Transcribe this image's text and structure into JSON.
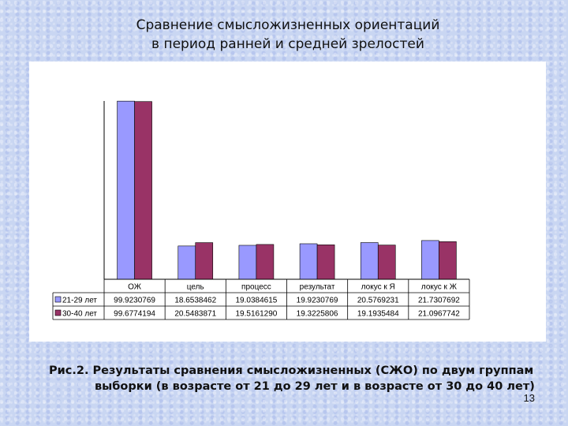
{
  "slide": {
    "title_line1": "Сравнение  смысложизненных  ориентаций",
    "title_line2": "в период ранней и средней зрелостей",
    "caption_line1": "Рис.2. Результаты сравнения смысложизненных (СЖО) по двум группам",
    "caption_line2": "выборки   (в возрасте от 21 до 29 лет и в возрасте от 30 до 40 лет)",
    "page_number": "13"
  },
  "chart_data": {
    "type": "bar",
    "categories": [
      "ОЖ",
      "цель",
      "процесс",
      "результат",
      "локус к Я",
      "локус к Ж"
    ],
    "series": [
      {
        "name": "21-29 лет",
        "color": "#9999ff",
        "values": [
          99.9230769,
          18.6538462,
          19.0384615,
          19.9230769,
          20.5769231,
          21.7307692
        ],
        "value_labels": [
          "99.9230769",
          "18.6538462",
          "19.0384615",
          "19.9230769",
          "20.5769231",
          "21.7307692"
        ]
      },
      {
        "name": "30-40 лет",
        "color": "#993366",
        "values": [
          99.6774194,
          20.5483871,
          19.516129,
          19.3225806,
          19.1935484,
          21.0967742
        ],
        "value_labels": [
          "99.6774194",
          "20.5483871",
          "19.5161290",
          "19.3225806",
          "19.1935484",
          "21.0967742"
        ]
      }
    ],
    "ylim": [
      0,
      100
    ],
    "grid": false,
    "legend": "data-table-left"
  }
}
